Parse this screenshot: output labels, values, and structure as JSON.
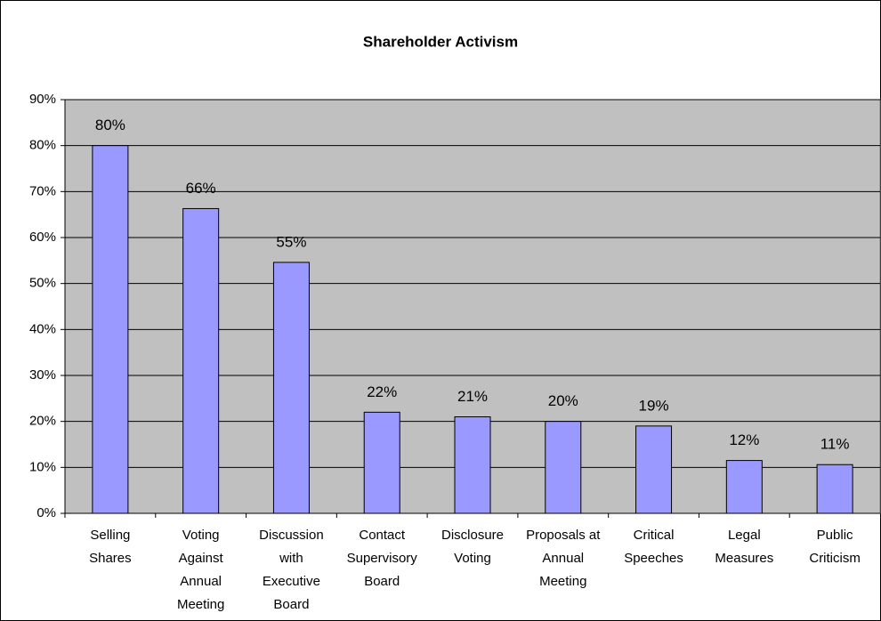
{
  "chart_data": {
    "type": "bar",
    "title": "Shareholder Activism",
    "categories": [
      "Selling Shares",
      "Voting Against Annual Meeting",
      "Discussion with Executive Board",
      "Contact Supervisory Board",
      "Disclosure Voting",
      "Proposals at Annual Meeting",
      "Critical Speeches",
      "Legal Measures",
      "Public Criticism"
    ],
    "values": [
      80,
      66.3,
      54.6,
      22,
      21,
      20,
      19,
      11.5,
      10.6
    ],
    "value_labels": [
      "80%",
      "66%",
      "55%",
      "22%",
      "21%",
      "20%",
      "19%",
      "12%",
      "11%"
    ],
    "color": "#9999ff",
    "ylim": [
      0,
      90
    ],
    "yticks": [
      {
        "value": 0,
        "label": "0%"
      },
      {
        "value": 10,
        "label": "10%"
      },
      {
        "value": 20,
        "label": "20%"
      },
      {
        "value": 30,
        "label": "30%"
      },
      {
        "value": 40,
        "label": "40%"
      },
      {
        "value": 50,
        "label": "50%"
      },
      {
        "value": 60,
        "label": "60%"
      },
      {
        "value": 70,
        "label": "70%"
      },
      {
        "value": 80,
        "label": "80%"
      },
      {
        "value": 90,
        "label": "90%"
      }
    ],
    "grid": true
  }
}
